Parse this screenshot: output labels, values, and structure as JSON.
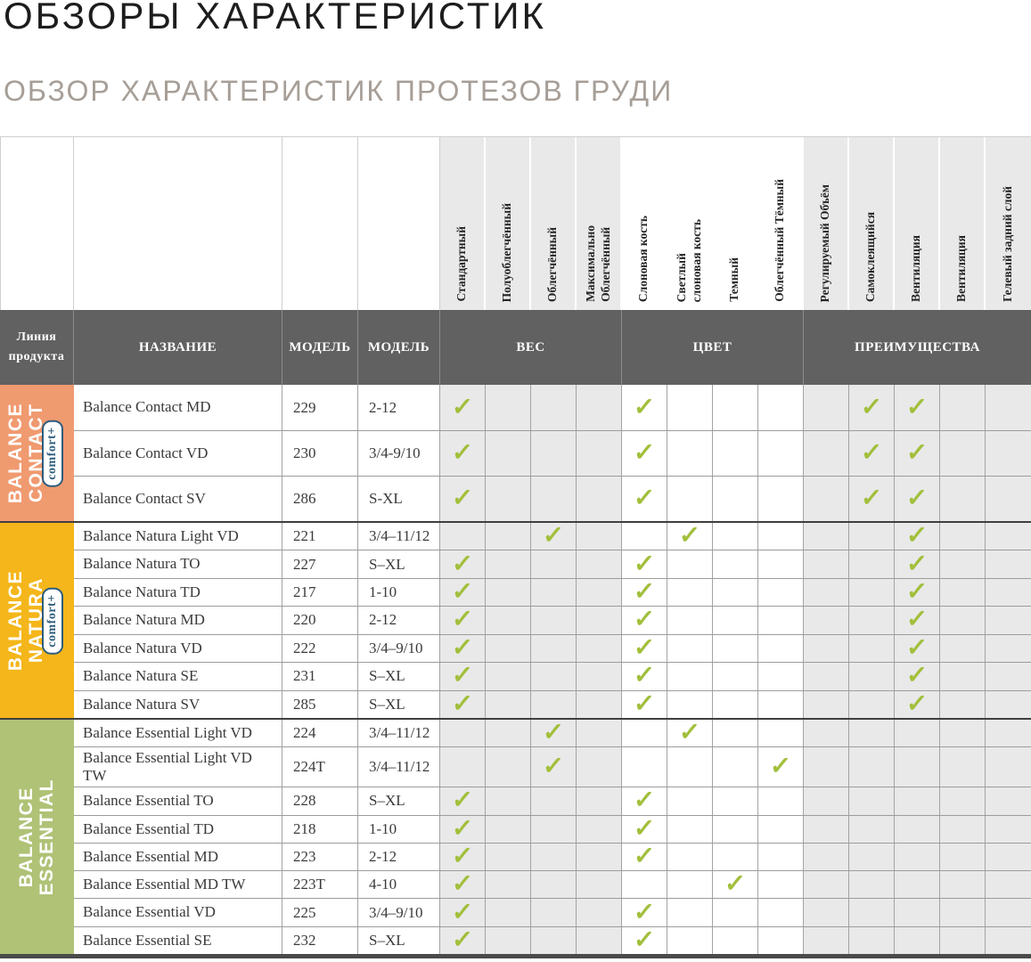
{
  "page": {
    "title": "ОБЗОРЫ ХАРАКТЕРИСТИК",
    "subtitle": "ОБЗОР ХАРАКТЕРИСТИК ПРОТЕЗОВ ГРУДИ"
  },
  "colors": {
    "check": "#a2bf3b",
    "header_bar": "#616161",
    "group_contact": "#f09a70",
    "group_natura": "#f4b61a",
    "group_essential": "#afc276"
  },
  "table": {
    "header": {
      "product_line": "Линия продукта",
      "name": "НАЗВАНИЕ",
      "model": "МОДЕЛЬ",
      "model2": "МОДЕЛЬ",
      "weight_group": "ВЕС",
      "color_group": "ЦВЕТ",
      "advantages_group": "ПРЕИМУЩЕСТВА"
    },
    "feature_columns": [
      "Стандартный",
      "Полуоблегчённый",
      "Облегчённый",
      "Максимально\nОблегчённый",
      "Слоновая кость",
      "Светлый\nслоновая кость",
      "Темный",
      "Облегчённый Тёмный",
      "Регулируемый Объём",
      "Самоклеящийся",
      "Вентиляция",
      "Вентиляция",
      "Гелевый задний слой"
    ],
    "groups": [
      {
        "label_lines": [
          "BALANCE",
          "CONTACT"
        ],
        "badge": "comfort+",
        "color": "#f09a70",
        "rows": [
          {
            "name": "Balance Contact MD",
            "model": "229",
            "sizes": "2-12",
            "checks": [
              1,
              5,
              10,
              11
            ]
          },
          {
            "name": "Balance Contact VD",
            "model": "230",
            "sizes": "3/4-9/10",
            "checks": [
              1,
              5,
              10,
              11
            ]
          },
          {
            "name": "Balance Contact SV",
            "model": "286",
            "sizes": "S-XL",
            "checks": [
              1,
              5,
              10,
              11
            ]
          }
        ]
      },
      {
        "label_lines": [
          "BALANCE",
          "NATURA"
        ],
        "badge": "comfort+",
        "color": "#f4b61a",
        "rows": [
          {
            "name": "Balance Natura Light VD",
            "model": "221",
            "sizes": "3/4–11/12",
            "checks": [
              3,
              6,
              11
            ]
          },
          {
            "name": "Balance Natura TO",
            "model": "227",
            "sizes": "S–XL",
            "checks": [
              1,
              5,
              11
            ]
          },
          {
            "name": "Balance Natura TD",
            "model": "217",
            "sizes": "1-10",
            "checks": [
              1,
              5,
              11
            ]
          },
          {
            "name": "Balance Natura MD",
            "model": "220",
            "sizes": "2-12",
            "checks": [
              1,
              5,
              11
            ]
          },
          {
            "name": "Balance Natura VD",
            "model": "222",
            "sizes": "3/4–9/10",
            "checks": [
              1,
              5,
              11
            ]
          },
          {
            "name": "Balance Natura SE",
            "model": "231",
            "sizes": "S–XL",
            "checks": [
              1,
              5,
              11
            ]
          },
          {
            "name": "Balance Natura SV",
            "model": "285",
            "sizes": "S–XL",
            "checks": [
              1,
              5,
              11
            ]
          }
        ]
      },
      {
        "label_lines": [
          "BALANCE",
          "ESSENTIAL"
        ],
        "badge": null,
        "color": "#afc276",
        "rows": [
          {
            "name": "Balance Essential Light VD",
            "model": "224",
            "sizes": "3/4–11/12",
            "checks": [
              3,
              6
            ]
          },
          {
            "name": "Balance Essential Light VD TW",
            "model": "224T",
            "sizes": "3/4–11/12",
            "checks": [
              3,
              8
            ]
          },
          {
            "name": "Balance Essential TO",
            "model": "228",
            "sizes": "S–XL",
            "checks": [
              1,
              5
            ]
          },
          {
            "name": "Balance Essential TD",
            "model": "218",
            "sizes": "1-10",
            "checks": [
              1,
              5
            ]
          },
          {
            "name": "Balance Essential MD",
            "model": "223",
            "sizes": "2-12",
            "checks": [
              1,
              5
            ]
          },
          {
            "name": "Balance Essential MD TW",
            "model": "223T",
            "sizes": "4-10",
            "checks": [
              1,
              7
            ]
          },
          {
            "name": "Balance Essential VD",
            "model": "225",
            "sizes": "3/4–9/10",
            "checks": [
              1,
              5
            ]
          },
          {
            "name": "Balance Essential SE",
            "model": "232",
            "sizes": "S–XL",
            "checks": [
              1,
              5
            ]
          }
        ]
      }
    ]
  }
}
